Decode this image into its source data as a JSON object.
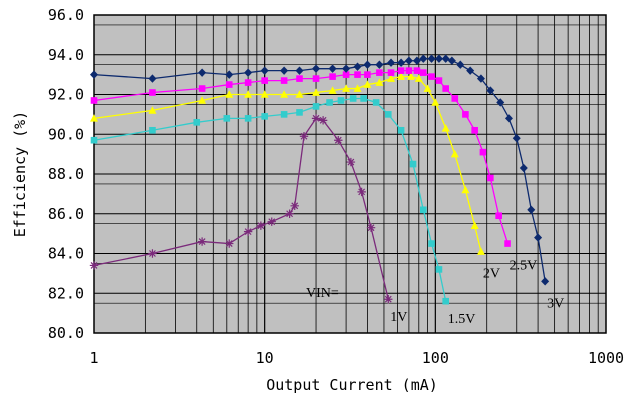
{
  "chart_data": {
    "type": "line",
    "xlabel": "Output Current (mA)",
    "ylabel": "Efficiency (%)",
    "x_scale": "log",
    "xlim": [
      1,
      1000
    ],
    "ylim": [
      80.0,
      96.0
    ],
    "x_ticks": [
      "1",
      "10",
      "100",
      "1000"
    ],
    "y_ticks": [
      "80.0",
      "82.0",
      "84.0",
      "86.0",
      "88.0",
      "90.0",
      "92.0",
      "94.0",
      "96.0"
    ],
    "grid": true,
    "legend_title": "VIN=",
    "series": [
      {
        "name": "1V",
        "color": "#7b2a7b",
        "marker": "star",
        "x": [
          1,
          2.2,
          4.3,
          6.2,
          8,
          9.5,
          11,
          14,
          15,
          17,
          20,
          22,
          27,
          32,
          37,
          42,
          53
        ],
        "y": [
          83.4,
          84.0,
          84.6,
          84.5,
          85.1,
          85.4,
          85.6,
          86.0,
          86.4,
          89.9,
          90.8,
          90.7,
          89.7,
          88.6,
          87.1,
          85.3,
          81.7
        ]
      },
      {
        "name": "1.5V",
        "color": "#33cccc",
        "marker": "square",
        "x": [
          1,
          2.2,
          4,
          6,
          8,
          10,
          13,
          16,
          20,
          24,
          28,
          33,
          38,
          45,
          53,
          63,
          74,
          85,
          95,
          105,
          115
        ],
        "y": [
          89.7,
          90.2,
          90.6,
          90.8,
          90.8,
          90.9,
          91.0,
          91.1,
          91.4,
          91.6,
          91.7,
          91.8,
          91.8,
          91.6,
          91.0,
          90.2,
          88.5,
          86.2,
          84.5,
          83.2,
          81.6
        ]
      },
      {
        "name": "2V",
        "color": "#ffff00",
        "marker": "triangle",
        "x": [
          1,
          2.2,
          4.3,
          6.2,
          8,
          10,
          13,
          16,
          20,
          25,
          30,
          35,
          40,
          47,
          55,
          63,
          72,
          80,
          90,
          100,
          115,
          130,
          150,
          170,
          185
        ],
        "y": [
          90.8,
          91.2,
          91.7,
          92.0,
          92.0,
          92.0,
          92.0,
          92.0,
          92.1,
          92.2,
          92.3,
          92.3,
          92.5,
          92.6,
          92.8,
          92.9,
          92.9,
          92.8,
          92.3,
          91.6,
          90.3,
          89.0,
          87.2,
          85.4,
          84.1
        ]
      },
      {
        "name": "2.5V",
        "color": "#ff00ff",
        "marker": "square",
        "x": [
          1,
          2.2,
          4.3,
          6.2,
          8,
          10,
          13,
          16,
          20,
          25,
          30,
          35,
          40,
          47,
          55,
          63,
          70,
          78,
          85,
          95,
          105,
          115,
          130,
          150,
          170,
          190,
          210,
          235,
          265
        ],
        "y": [
          91.7,
          92.1,
          92.3,
          92.5,
          92.6,
          92.7,
          92.7,
          92.8,
          92.8,
          92.9,
          93.0,
          93.0,
          93.0,
          93.1,
          93.1,
          93.2,
          93.2,
          93.2,
          93.1,
          92.9,
          92.7,
          92.3,
          91.8,
          91.0,
          90.2,
          89.1,
          87.8,
          85.9,
          84.5
        ]
      },
      {
        "name": "3V",
        "color": "#0d2a6e",
        "marker": "diamond",
        "x": [
          1,
          2.2,
          4.3,
          6.2,
          8,
          10,
          13,
          16,
          20,
          25,
          30,
          35,
          40,
          47,
          55,
          63,
          70,
          78,
          85,
          95,
          105,
          115,
          125,
          140,
          160,
          185,
          210,
          240,
          270,
          300,
          330,
          365,
          400,
          440
        ],
        "y": [
          93.0,
          92.8,
          93.1,
          93.0,
          93.1,
          93.2,
          93.2,
          93.2,
          93.3,
          93.3,
          93.3,
          93.4,
          93.5,
          93.5,
          93.6,
          93.6,
          93.7,
          93.7,
          93.8,
          93.8,
          93.8,
          93.8,
          93.7,
          93.5,
          93.2,
          92.8,
          92.2,
          91.6,
          90.8,
          89.8,
          88.3,
          86.2,
          84.8,
          82.6
        ]
      }
    ]
  }
}
